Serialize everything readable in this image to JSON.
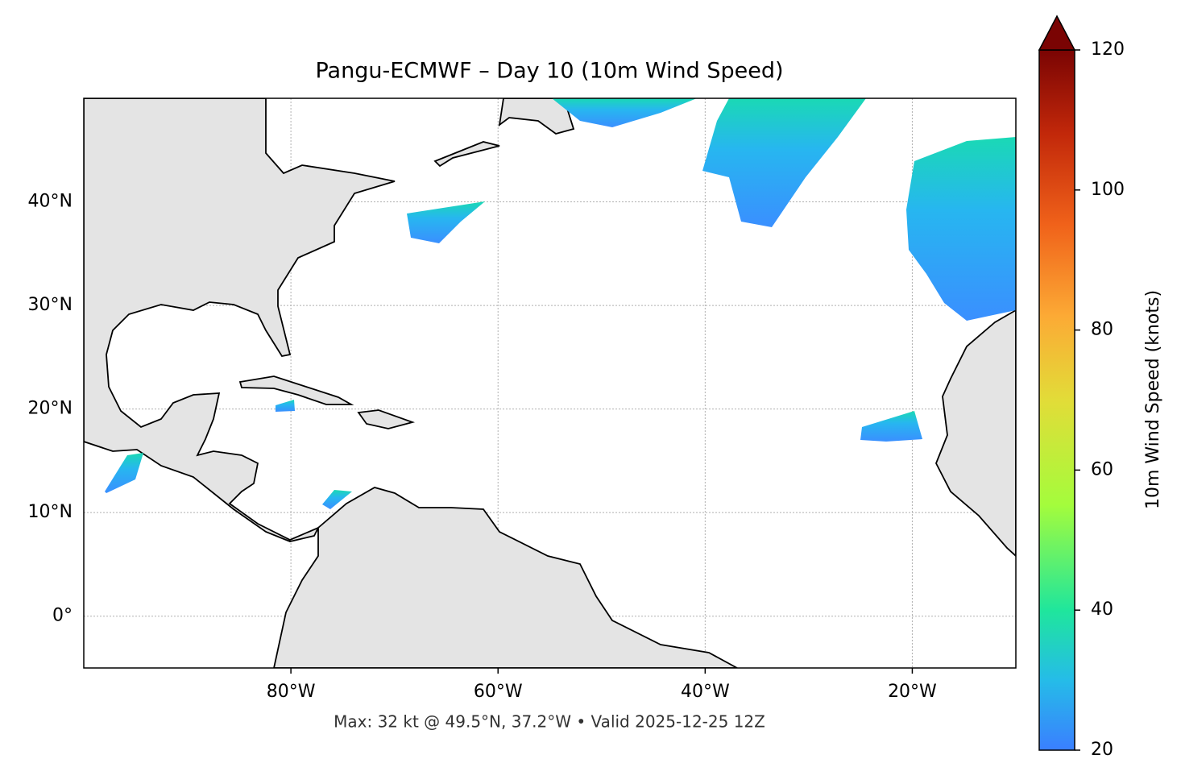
{
  "map": {
    "title": "Pangu-ECMWF – Day 10 (10m Wind Speed)",
    "xlim": [
      -100,
      -10
    ],
    "ylim": [
      -5,
      50
    ],
    "xticks": [
      {
        "value": -80,
        "label": "80°W"
      },
      {
        "value": -60,
        "label": "60°W"
      },
      {
        "value": -40,
        "label": "40°W"
      },
      {
        "value": -20,
        "label": "20°W"
      }
    ],
    "yticks": [
      {
        "value": 0,
        "label": "0°"
      },
      {
        "value": 10,
        "label": "10°N"
      },
      {
        "value": 20,
        "label": "20°N"
      },
      {
        "value": 30,
        "label": "30°N"
      },
      {
        "value": 40,
        "label": "40°N"
      }
    ],
    "grid": true,
    "footnote": "Max: 32 kt @ 49.5°N, 37.2°W • Valid 2025-12-25 12Z",
    "colorbar": {
      "label": "10m Wind Speed (knots)",
      "lim": [
        20,
        120
      ],
      "ticks": [
        20,
        40,
        60,
        80,
        100,
        120
      ],
      "extend": "max"
    }
  }
}
